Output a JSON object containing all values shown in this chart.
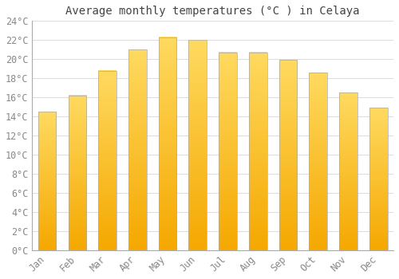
{
  "title": "Average monthly temperatures (°C ) in Celaya",
  "months": [
    "Jan",
    "Feb",
    "Mar",
    "Apr",
    "May",
    "Jun",
    "Jul",
    "Aug",
    "Sep",
    "Oct",
    "Nov",
    "Dec"
  ],
  "values": [
    14.5,
    16.2,
    18.8,
    21.0,
    22.3,
    22.0,
    20.7,
    20.7,
    19.9,
    18.6,
    16.5,
    14.9
  ],
  "bar_color_bottom": "#F5A800",
  "bar_color_top": "#FFD966",
  "background_color": "#FFFFFF",
  "grid_color": "#DDDDDD",
  "text_color": "#888888",
  "title_color": "#444444",
  "ylim": [
    0,
    24
  ],
  "ytick_step": 2,
  "title_fontsize": 10,
  "tick_fontsize": 8.5,
  "bar_width": 0.6
}
